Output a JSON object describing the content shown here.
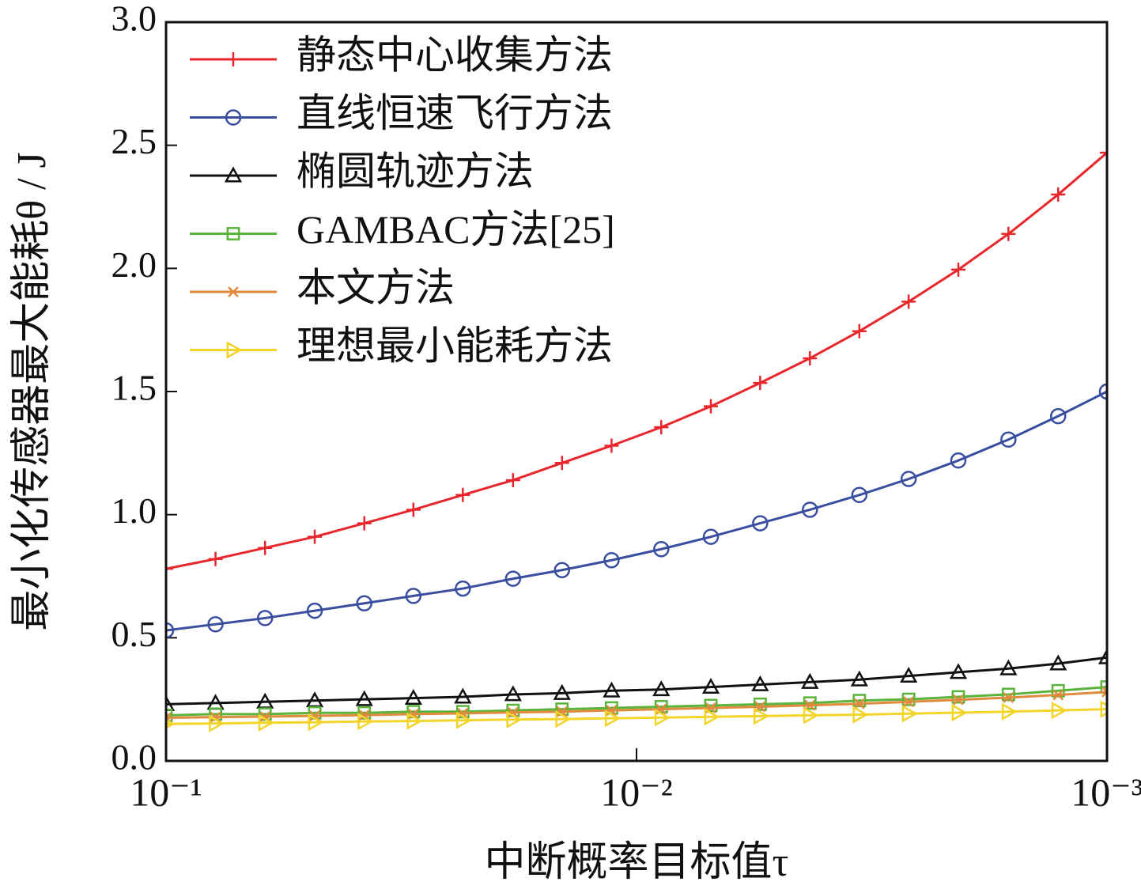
{
  "chart_data": {
    "type": "line",
    "xlabel": "中断概率目标值τ",
    "ylabel": "最小化传感器最大能耗θ / J",
    "xscale": "log",
    "x": [
      0.1,
      0.0785,
      0.0616,
      0.0483,
      0.0379,
      0.0298,
      0.0234,
      0.0183,
      0.0144,
      0.0113,
      0.00886,
      0.00695,
      0.00546,
      0.00428,
      0.00336,
      0.00264,
      0.00207,
      0.00162,
      0.00127,
      0.001
    ],
    "xlim": [
      0.1,
      0.001
    ],
    "xticks": [
      {
        "value": 0.1,
        "label": "10⁻¹"
      },
      {
        "value": 0.01,
        "label": "10⁻²"
      },
      {
        "value": 0.001,
        "label": "10⁻³"
      }
    ],
    "ylim": [
      0,
      3
    ],
    "yticks": [
      {
        "value": 0,
        "label": "0.0"
      },
      0.5,
      {
        "value": 1,
        "label": "1.0"
      },
      1.5,
      {
        "value": 2,
        "label": "2.0"
      },
      2.5,
      {
        "value": 3,
        "label": "3.0"
      }
    ],
    "legend": "upper left",
    "series": [
      {
        "name": "静态中心收集方法",
        "color": "#e8262b",
        "marker": "plus",
        "values": [
          0.78,
          0.82,
          0.865,
          0.91,
          0.965,
          1.02,
          1.08,
          1.14,
          1.21,
          1.28,
          1.355,
          1.44,
          1.535,
          1.635,
          1.745,
          1.865,
          1.995,
          2.14,
          2.3,
          2.47
        ]
      },
      {
        "name": "直线恒速飞行方法",
        "color": "#3a4ea0",
        "marker": "circle",
        "values": [
          0.53,
          0.555,
          0.58,
          0.61,
          0.64,
          0.67,
          0.7,
          0.74,
          0.775,
          0.815,
          0.86,
          0.91,
          0.965,
          1.02,
          1.08,
          1.145,
          1.22,
          1.305,
          1.4,
          1.5
        ]
      },
      {
        "name": "椭圆轨迹方法",
        "color": "#111111",
        "marker": "triangle",
        "values": [
          0.23,
          0.235,
          0.24,
          0.245,
          0.25,
          0.255,
          0.26,
          0.27,
          0.275,
          0.285,
          0.29,
          0.3,
          0.31,
          0.32,
          0.33,
          0.345,
          0.36,
          0.375,
          0.395,
          0.42
        ]
      },
      {
        "name": "GAMBAC方法[25]",
        "color": "#5ab43c",
        "marker": "square",
        "values": [
          0.185,
          0.19,
          0.19,
          0.195,
          0.195,
          0.2,
          0.2,
          0.205,
          0.21,
          0.215,
          0.22,
          0.225,
          0.23,
          0.235,
          0.245,
          0.25,
          0.26,
          0.27,
          0.285,
          0.3
        ]
      },
      {
        "name": "本文方法",
        "color": "#e08a3c",
        "marker": "x",
        "values": [
          0.175,
          0.178,
          0.18,
          0.183,
          0.186,
          0.19,
          0.193,
          0.197,
          0.2,
          0.205,
          0.21,
          0.215,
          0.22,
          0.226,
          0.232,
          0.24,
          0.248,
          0.257,
          0.268,
          0.28
        ]
      },
      {
        "name": "理想最小能耗方法",
        "color": "#f2d42a",
        "marker": "tri-right",
        "values": [
          0.15,
          0.152,
          0.155,
          0.157,
          0.16,
          0.162,
          0.165,
          0.168,
          0.17,
          0.173,
          0.176,
          0.179,
          0.182,
          0.185,
          0.188,
          0.192,
          0.196,
          0.2,
          0.205,
          0.21
        ]
      }
    ]
  }
}
